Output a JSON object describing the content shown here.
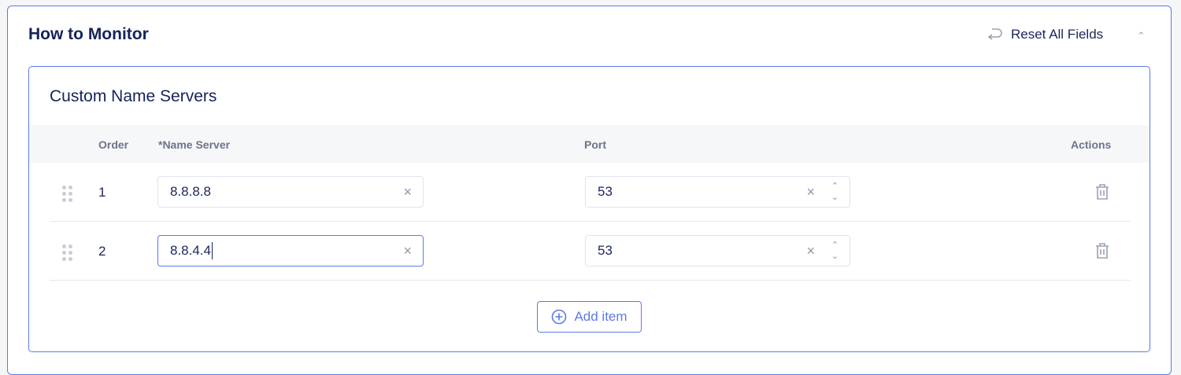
{
  "section": {
    "title": "How to Monitor",
    "reset_label": "Reset All Fields",
    "collapse_icon": "chevron-up-icon"
  },
  "subsection": {
    "title": "Custom Name Servers"
  },
  "table": {
    "headers": {
      "order": "Order",
      "name_server": "*Name Server",
      "port": "Port",
      "actions": "Actions"
    },
    "rows": [
      {
        "order": "1",
        "name_server": "8.8.8.8",
        "port": "53"
      },
      {
        "order": "2",
        "name_server": "8.8.4.4",
        "port": "53"
      }
    ]
  },
  "add_item_label": "Add item",
  "colors": {
    "accent": "#5b7be8",
    "text": "#1b2559",
    "header_bg": "#f6f7f9"
  }
}
